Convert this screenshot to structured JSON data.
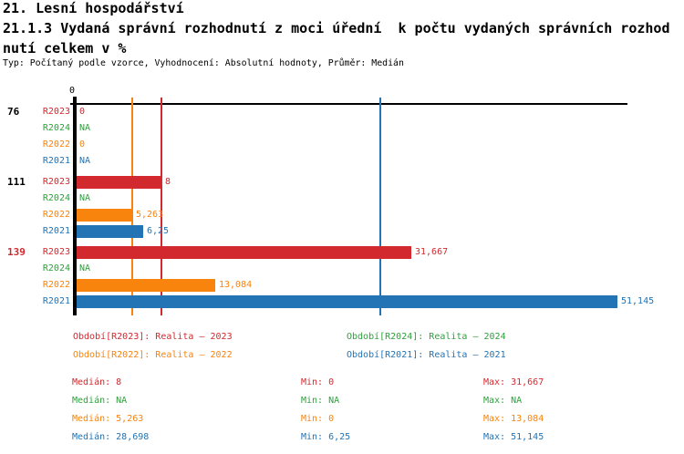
{
  "header": {
    "title_line1": "21. Lesní hospodářství",
    "title_line2": "21.1.3 Vydaná správní rozhodnutí z moci úřední  k počtu vydaných správních rozhod",
    "title_line3": "nutí celkem v %",
    "meta": "Typ: Počítaný podle vzorce, Vyhodnocení: Absolutní hodnoty, Průměr: Medián"
  },
  "colors": {
    "R2023": "#D2292E",
    "R2024": "#2EA13C",
    "R2022": "#F8830D",
    "R2021": "#2274B5",
    "axis": "#000000",
    "group_highlight": "#D2292E"
  },
  "chart_data": {
    "type": "bar",
    "orientation": "horizontal",
    "axis_zero_label": "0",
    "xlim": [
      0,
      55
    ],
    "series_order": [
      "R2023",
      "R2024",
      "R2022",
      "R2021"
    ],
    "groups": [
      {
        "label": "76",
        "label_color": "#000000",
        "bars": [
          {
            "series": "R2023",
            "value": 0,
            "value_label": "0"
          },
          {
            "series": "R2024",
            "value": null,
            "value_label": "NA"
          },
          {
            "series": "R2022",
            "value": 0,
            "value_label": "0"
          },
          {
            "series": "R2021",
            "value": null,
            "value_label": "NA"
          }
        ]
      },
      {
        "label": "111",
        "label_color": "#000000",
        "bars": [
          {
            "series": "R2023",
            "value": 8,
            "value_label": "8"
          },
          {
            "series": "R2024",
            "value": null,
            "value_label": "NA"
          },
          {
            "series": "R2022",
            "value": 5.263,
            "value_label": "5,263"
          },
          {
            "series": "R2021",
            "value": 6.25,
            "value_label": "6,25"
          }
        ]
      },
      {
        "label": "139",
        "label_color": "#D2292E",
        "bars": [
          {
            "series": "R2023",
            "value": 31.667,
            "value_label": "31,667"
          },
          {
            "series": "R2024",
            "value": null,
            "value_label": "NA"
          },
          {
            "series": "R2022",
            "value": 13.084,
            "value_label": "13,084"
          },
          {
            "series": "R2021",
            "value": 51.145,
            "value_label": "51,145"
          }
        ]
      }
    ],
    "median_lines": [
      {
        "series": "R2023",
        "value": 8
      },
      {
        "series": "R2022",
        "value": 5.263
      },
      {
        "series": "R2021",
        "value": 28.698
      }
    ]
  },
  "legend": [
    {
      "series": "R2023",
      "label": "Období[R2023]: Realita – 2023"
    },
    {
      "series": "R2024",
      "label": "Období[R2024]: Realita – 2024"
    },
    {
      "series": "R2022",
      "label": "Období[R2022]: Realita – 2022"
    },
    {
      "series": "R2021",
      "label": "Období[R2021]: Realita – 2021"
    }
  ],
  "stats": [
    {
      "series": "R2023",
      "median": "Medián: 8",
      "min": "Min: 0",
      "max": "Max: 31,667"
    },
    {
      "series": "R2024",
      "median": "Medián: NA",
      "min": "Min: NA",
      "max": "Max: NA"
    },
    {
      "series": "R2022",
      "median": "Medián: 5,263",
      "min": "Min: 0",
      "max": "Max: 13,084"
    },
    {
      "series": "R2021",
      "median": "Medián: 28,698",
      "min": "Min: 6,25",
      "max": "Max: 51,145"
    }
  ]
}
